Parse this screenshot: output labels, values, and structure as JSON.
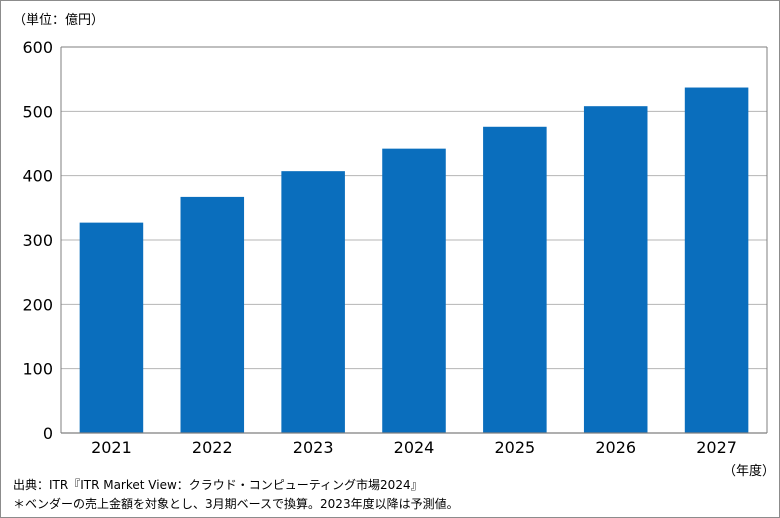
{
  "chart_data": {
    "type": "bar",
    "categories": [
      "2021",
      "2022",
      "2023",
      "2024",
      "2025",
      "2026",
      "2027"
    ],
    "values": [
      327,
      367,
      407,
      442,
      476,
      508,
      537
    ],
    "unit_label": "（単位：億円）",
    "xlabel": "（年度）",
    "ylabel": "",
    "ylim": [
      0,
      600
    ],
    "yticks": [
      0,
      100,
      200,
      300,
      400,
      500,
      600
    ],
    "grid": true,
    "bar_color": "#0a6ebd",
    "grid_color": "#b5b5b5",
    "axis_color": "#7f7f7f"
  },
  "footer": {
    "source": "出典：ITR『ITR Market View：クラウド・コンピューティング市場2024』",
    "note": "＊ベンダーの売上金額を対象とし、3月期ベースで換算。2023年度以降は予測値。"
  }
}
